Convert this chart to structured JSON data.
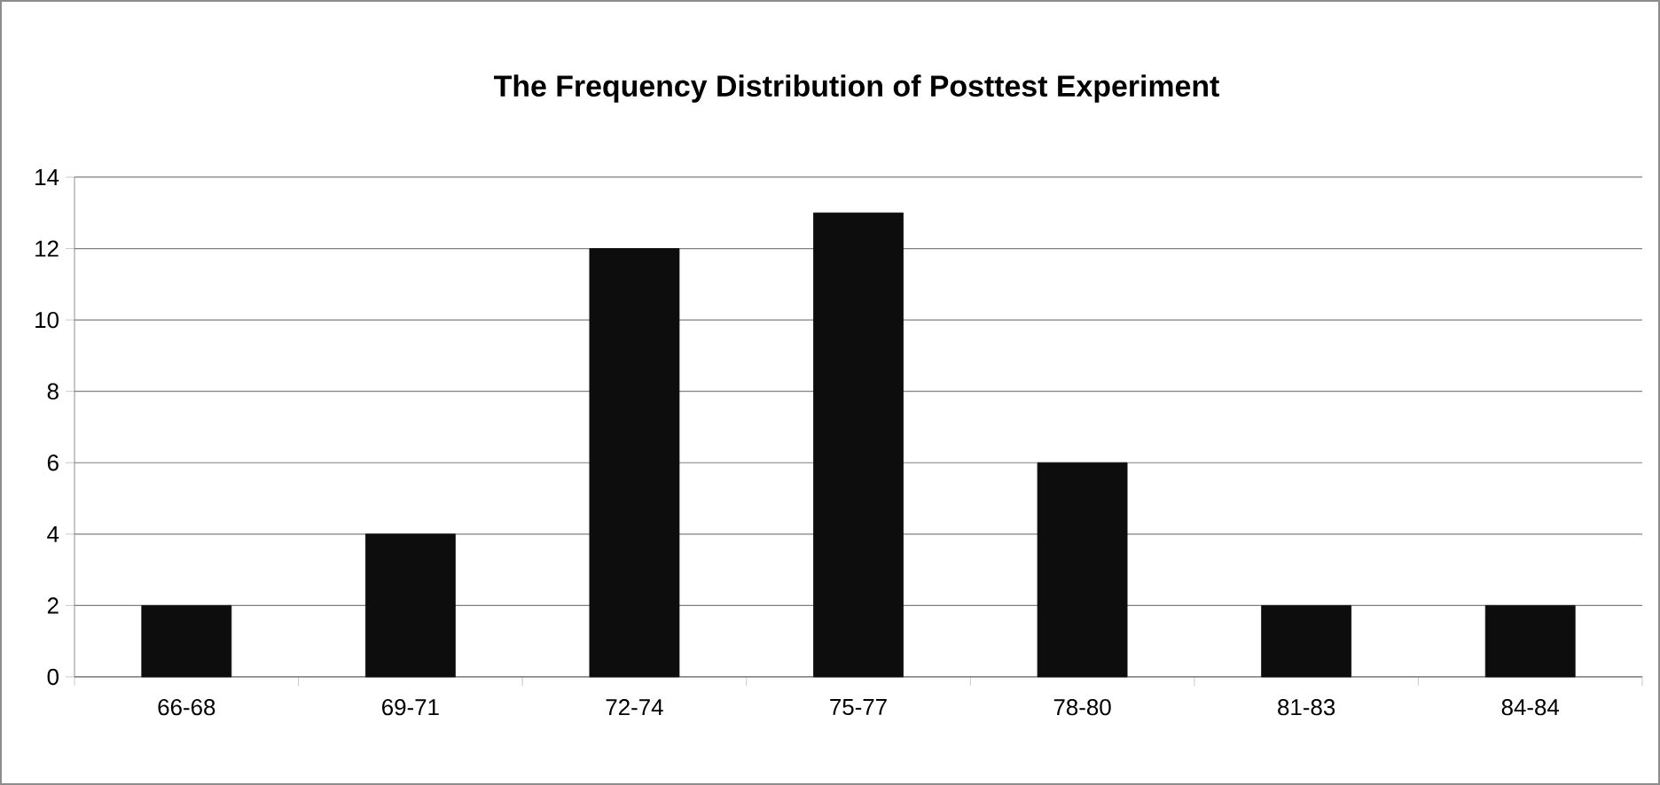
{
  "chart_data": {
    "type": "bar",
    "title": "The Frequency Distribution of Posttest Experiment",
    "categories": [
      "66-68",
      "69-71",
      "72-74",
      "75-77",
      "78-80",
      "81-83",
      "84-84"
    ],
    "values": [
      2,
      4,
      12,
      13,
      6,
      2,
      2
    ],
    "color": "#0d0d0d",
    "ylim": [
      0,
      14
    ],
    "yticks": [
      0,
      2,
      4,
      6,
      8,
      10,
      12,
      14
    ],
    "grid": "y"
  }
}
